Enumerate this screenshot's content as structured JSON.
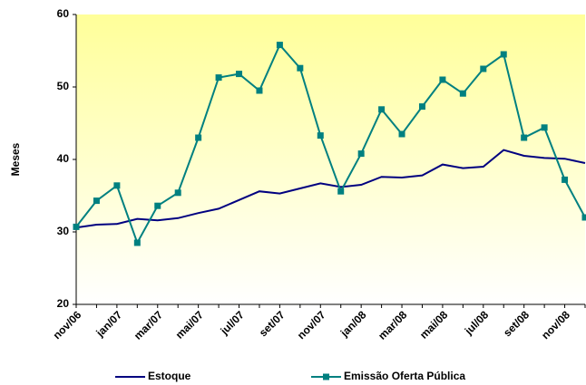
{
  "chart_data": {
    "type": "line",
    "y_label": "Meses",
    "categories": [
      "nov/06",
      null,
      "jan/07",
      null,
      "mar/07",
      null,
      "mai/07",
      null,
      "jul/07",
      null,
      "set/07",
      null,
      "nov/07",
      null,
      "jan/08",
      null,
      "mar/08",
      null,
      "mai/08",
      null,
      "jul/08",
      null,
      "set/08",
      null,
      "nov/08",
      null
    ],
    "series": [
      {
        "name": "Estoque",
        "color": "#000080",
        "marker": false,
        "values": [
          30.6,
          31.0,
          31.1,
          31.8,
          31.6,
          31.9,
          32.6,
          33.2,
          34.4,
          35.6,
          35.3,
          36.0,
          36.7,
          36.2,
          36.5,
          37.6,
          37.5,
          37.8,
          39.3,
          38.8,
          39.0,
          41.3,
          40.5,
          40.2,
          40.1,
          39.5
        ]
      },
      {
        "name": "Emissão Oferta Pública",
        "color": "#008080",
        "marker": true,
        "values": [
          30.7,
          34.3,
          36.4,
          28.5,
          33.6,
          35.4,
          43.0,
          51.3,
          51.8,
          49.5,
          55.8,
          52.6,
          43.3,
          35.6,
          40.8,
          46.9,
          43.5,
          47.3,
          51.0,
          49.1,
          52.5,
          54.5,
          43.0,
          44.4,
          37.2,
          32.0
        ]
      }
    ],
    "ylim": [
      20,
      60
    ],
    "yticks": [
      20,
      30,
      40,
      50,
      60
    ]
  }
}
